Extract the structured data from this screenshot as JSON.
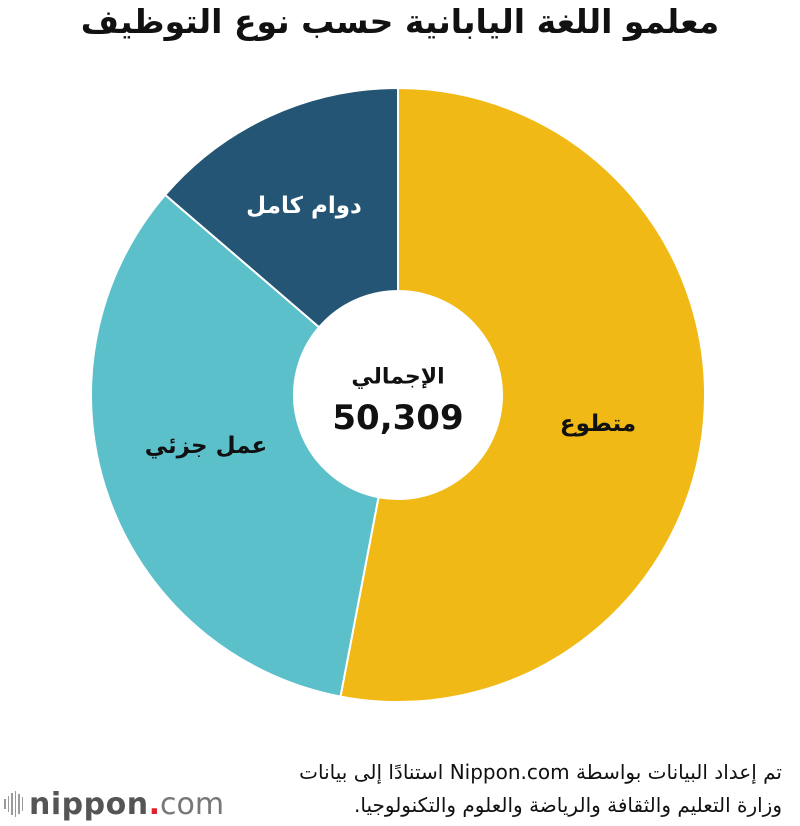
{
  "title": "معلمو اللغة اليابانية حسب نوع التوظيف",
  "center": {
    "label": "الإجمالي",
    "value": "50,309"
  },
  "segments": [
    {
      "label": "متطوع",
      "color": "#F0B916",
      "text_color": "#111111"
    },
    {
      "label": "عمل جزئي",
      "color": "#5CC0CB",
      "text_color": "#111111"
    },
    {
      "label": "دوام كامل",
      "color": "#245574",
      "text_color": "#FFFFFF"
    }
  ],
  "source": {
    "line1": "تم إعداد البيانات بواسطة Nippon.com استنادًا إلى بيانات",
    "line2": "وزارة التعليم والثقافة والرياضة والعلوم والتكنولوجيا."
  },
  "logo": {
    "name": "nippon",
    "dot": ".",
    "suffix": "com"
  },
  "chart_data": {
    "type": "pie",
    "subtype": "donut",
    "title": "معلمو اللغة اليابانية حسب نوع التوظيف",
    "total_label": "الإجمالي",
    "total": 50309,
    "categories": [
      "متطوع",
      "عمل جزئي",
      "دوام كامل"
    ],
    "values_percent_estimated": [
      53.0,
      33.3,
      13.7
    ],
    "values_estimated": [
      26664,
      16736,
      6909
    ],
    "colors": [
      "#F0B916",
      "#5CC0CB",
      "#245574"
    ],
    "start_angle_deg": 0,
    "direction": "clockwise",
    "legend": "none (labels on slices)"
  }
}
